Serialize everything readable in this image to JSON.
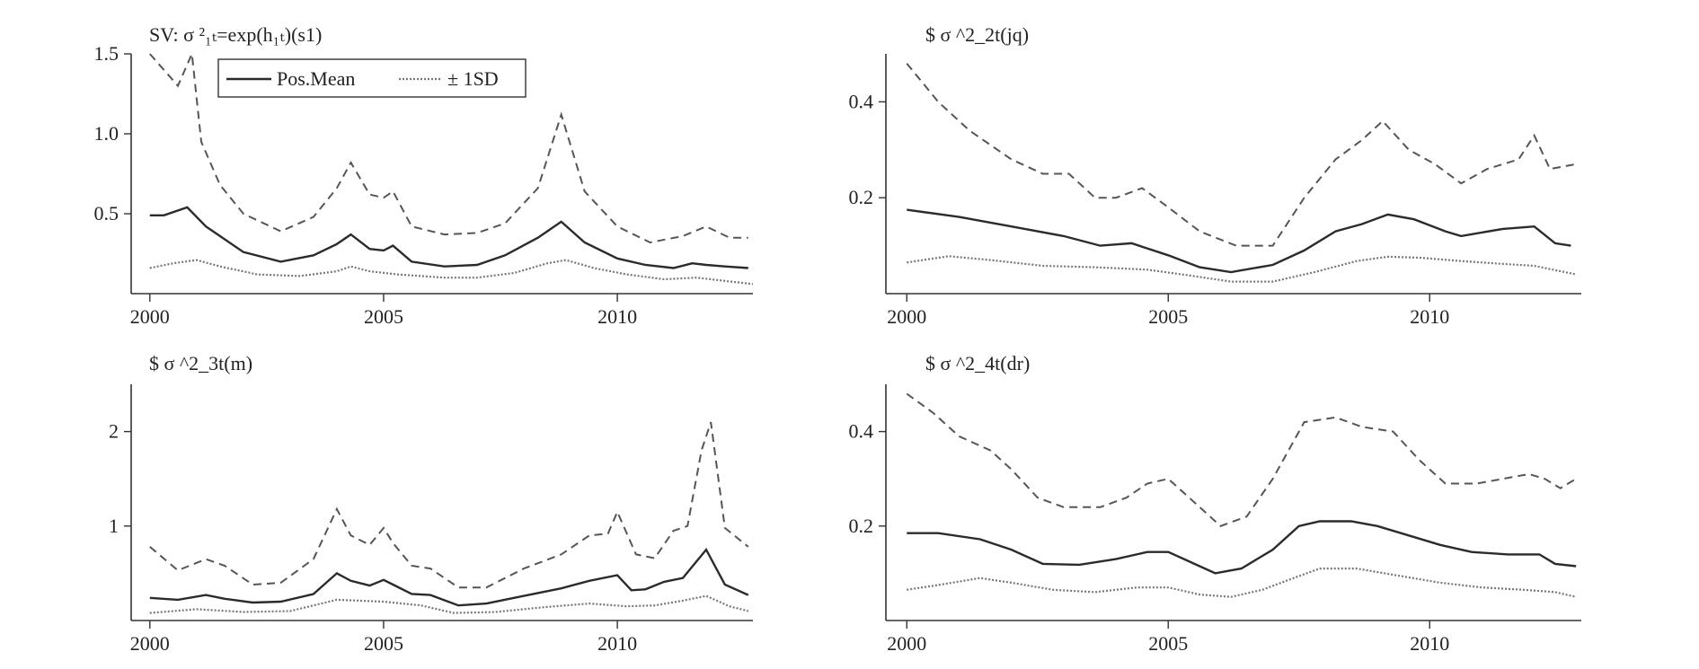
{
  "legend": {
    "mean_label": "Pos.Mean",
    "band_label": "± 1SD"
  },
  "chart_data": [
    {
      "type": "line",
      "title": "SV: σ ²₁ₜ=exp(h₁ₜ)(s1)",
      "ylim": [
        0,
        1.5
      ],
      "yticks": [
        0.5,
        1.0,
        1.5
      ],
      "ytick_labels": [
        "0.5",
        "1.0",
        "1.5"
      ],
      "xlim": [
        1999.6,
        2012.9
      ],
      "xticks": [
        2000,
        2005,
        2010
      ],
      "xtick_labels": [
        "2000",
        "2005",
        "2010"
      ],
      "series": [
        {
          "name": "Pos.Mean",
          "style": "solid",
          "x": [
            2000.0,
            2000.3,
            2000.8,
            2001.2,
            2002.0,
            2002.8,
            2003.5,
            2004.0,
            2004.3,
            2004.7,
            2005.0,
            2005.2,
            2005.6,
            2006.3,
            2007.0,
            2007.6,
            2008.3,
            2008.8,
            2009.3,
            2010.0,
            2010.6,
            2011.2,
            2011.6,
            2011.9,
            2012.3,
            2012.8
          ],
          "y": [
            0.49,
            0.49,
            0.54,
            0.42,
            0.26,
            0.2,
            0.24,
            0.31,
            0.37,
            0.28,
            0.27,
            0.3,
            0.2,
            0.17,
            0.18,
            0.24,
            0.35,
            0.45,
            0.32,
            0.22,
            0.18,
            0.16,
            0.19,
            0.18,
            0.17,
            0.16
          ]
        },
        {
          "name": "+1SD",
          "style": "dashed",
          "x": [
            2000.0,
            2000.3,
            2000.6,
            2000.9,
            2001.1,
            2001.5,
            2002.0,
            2002.8,
            2003.5,
            2004.0,
            2004.3,
            2004.7,
            2005.0,
            2005.2,
            2005.6,
            2006.3,
            2007.0,
            2007.6,
            2008.3,
            2008.8,
            2009.3,
            2010.0,
            2010.7,
            2011.4,
            2011.9,
            2012.4,
            2012.8
          ],
          "y": [
            1.5,
            1.4,
            1.3,
            1.5,
            0.95,
            0.68,
            0.5,
            0.39,
            0.48,
            0.66,
            0.82,
            0.62,
            0.6,
            0.64,
            0.42,
            0.37,
            0.38,
            0.44,
            0.66,
            1.12,
            0.64,
            0.42,
            0.32,
            0.36,
            0.42,
            0.35,
            0.35
          ]
        },
        {
          "name": "-1SD",
          "style": "dotted",
          "x": [
            2000.0,
            2000.5,
            2001.0,
            2001.5,
            2002.3,
            2003.2,
            2004.0,
            2004.3,
            2004.7,
            2005.3,
            2006.3,
            2007.0,
            2007.8,
            2008.5,
            2008.9,
            2009.5,
            2010.2,
            2011.0,
            2011.7,
            2012.3,
            2012.9
          ],
          "y": [
            0.16,
            0.19,
            0.21,
            0.17,
            0.12,
            0.11,
            0.14,
            0.17,
            0.14,
            0.12,
            0.1,
            0.1,
            0.13,
            0.19,
            0.21,
            0.16,
            0.12,
            0.09,
            0.1,
            0.08,
            0.06
          ]
        }
      ]
    },
    {
      "type": "line",
      "title": "$ σ ^2_2t(jq)",
      "ylim": [
        0,
        0.5
      ],
      "yticks": [
        0.2,
        0.4
      ],
      "ytick_labels": [
        "0.2",
        "0.4"
      ],
      "xlim": [
        1999.6,
        2012.9
      ],
      "xticks": [
        2000,
        2005,
        2010
      ],
      "xtick_labels": [
        "2000",
        "2005",
        "2010"
      ],
      "series": [
        {
          "name": "Pos.Mean",
          "style": "solid",
          "x": [
            2000.0,
            2001.0,
            2002.0,
            2003.0,
            2003.7,
            2004.3,
            2005.0,
            2005.6,
            2006.2,
            2007.0,
            2007.6,
            2008.2,
            2008.7,
            2009.2,
            2009.7,
            2010.3,
            2010.6,
            2011.4,
            2012.0,
            2012.4,
            2012.7
          ],
          "y": [
            0.175,
            0.16,
            0.14,
            0.12,
            0.1,
            0.105,
            0.08,
            0.055,
            0.045,
            0.06,
            0.09,
            0.13,
            0.145,
            0.165,
            0.155,
            0.13,
            0.12,
            0.135,
            0.14,
            0.105,
            0.1
          ]
        },
        {
          "name": "+1SD",
          "style": "dashed",
          "x": [
            2000.0,
            2000.6,
            2001.2,
            2002.0,
            2002.6,
            2003.1,
            2003.6,
            2004.0,
            2004.5,
            2005.0,
            2005.6,
            2006.3,
            2007.0,
            2007.6,
            2008.2,
            2008.7,
            2009.1,
            2009.6,
            2010.1,
            2010.6,
            2011.1,
            2011.7,
            2012.0,
            2012.3,
            2012.8
          ],
          "y": [
            0.48,
            0.4,
            0.34,
            0.28,
            0.25,
            0.25,
            0.2,
            0.2,
            0.22,
            0.18,
            0.13,
            0.1,
            0.1,
            0.2,
            0.28,
            0.32,
            0.36,
            0.3,
            0.27,
            0.23,
            0.26,
            0.28,
            0.33,
            0.26,
            0.27
          ]
        },
        {
          "name": "-1SD",
          "style": "dotted",
          "x": [
            2000.0,
            2000.8,
            2001.6,
            2002.6,
            2003.6,
            2004.6,
            2005.4,
            2006.2,
            2007.0,
            2007.8,
            2008.6,
            2009.2,
            2009.8,
            2010.6,
            2011.4,
            2012.0,
            2012.8
          ],
          "y": [
            0.065,
            0.078,
            0.07,
            0.058,
            0.055,
            0.05,
            0.038,
            0.025,
            0.025,
            0.045,
            0.068,
            0.077,
            0.075,
            0.068,
            0.062,
            0.058,
            0.04
          ]
        }
      ]
    },
    {
      "type": "line",
      "title": "$ σ ^2_3t(m)",
      "ylim": [
        0,
        2.5
      ],
      "yticks": [
        1,
        2
      ],
      "ytick_labels": [
        "1",
        "2"
      ],
      "xlim": [
        1999.6,
        2012.9
      ],
      "xticks": [
        2000,
        2005,
        2010
      ],
      "xtick_labels": [
        "2000",
        "2005",
        "2010"
      ],
      "series": [
        {
          "name": "Pos.Mean",
          "style": "solid",
          "x": [
            2000.0,
            2000.6,
            2001.2,
            2001.6,
            2002.2,
            2002.8,
            2003.5,
            2004.0,
            2004.3,
            2004.7,
            2005.0,
            2005.2,
            2005.6,
            2006.0,
            2006.6,
            2007.2,
            2008.0,
            2008.8,
            2009.4,
            2010.0,
            2010.3,
            2010.6,
            2011.0,
            2011.4,
            2011.9,
            2012.3,
            2012.8
          ],
          "y": [
            0.24,
            0.22,
            0.27,
            0.23,
            0.19,
            0.2,
            0.28,
            0.5,
            0.42,
            0.37,
            0.43,
            0.38,
            0.28,
            0.27,
            0.16,
            0.18,
            0.26,
            0.34,
            0.42,
            0.48,
            0.32,
            0.33,
            0.41,
            0.45,
            0.75,
            0.38,
            0.27
          ]
        },
        {
          "name": "+1SD",
          "style": "dashed",
          "x": [
            2000.0,
            2000.6,
            2001.2,
            2001.6,
            2002.2,
            2002.8,
            2003.5,
            2004.0,
            2004.3,
            2004.7,
            2005.0,
            2005.2,
            2005.6,
            2006.0,
            2006.6,
            2007.2,
            2008.0,
            2008.8,
            2009.4,
            2009.8,
            2010.0,
            2010.4,
            2010.8,
            2011.2,
            2011.5,
            2011.8,
            2012.0,
            2012.3,
            2012.8
          ],
          "y": [
            0.78,
            0.53,
            0.65,
            0.58,
            0.38,
            0.4,
            0.65,
            1.18,
            0.9,
            0.8,
            0.98,
            0.82,
            0.58,
            0.55,
            0.35,
            0.35,
            0.55,
            0.7,
            0.9,
            0.92,
            1.15,
            0.7,
            0.66,
            0.95,
            1.0,
            1.8,
            2.1,
            0.98,
            0.78
          ]
        },
        {
          "name": "-1SD",
          "style": "dotted",
          "x": [
            2000.0,
            2001.0,
            2002.0,
            2003.0,
            2004.0,
            2005.0,
            2005.8,
            2006.5,
            2007.4,
            2008.4,
            2009.4,
            2010.2,
            2010.8,
            2011.4,
            2011.9,
            2012.4,
            2012.8
          ],
          "y": [
            0.08,
            0.12,
            0.09,
            0.1,
            0.22,
            0.2,
            0.16,
            0.08,
            0.09,
            0.14,
            0.18,
            0.15,
            0.16,
            0.21,
            0.26,
            0.15,
            0.1
          ]
        }
      ]
    },
    {
      "type": "line",
      "title": "$ σ ^2_4t(dr)",
      "ylim": [
        0,
        0.5
      ],
      "yticks": [
        0.2,
        0.4
      ],
      "ytick_labels": [
        "0.2",
        "0.4"
      ],
      "xlim": [
        1999.6,
        2012.9
      ],
      "xticks": [
        2000,
        2005,
        2010
      ],
      "xtick_labels": [
        "2000",
        "2005",
        "2010"
      ],
      "series": [
        {
          "name": "Pos.Mean",
          "style": "solid",
          "x": [
            2000.0,
            2000.6,
            2001.4,
            2002.0,
            2002.6,
            2003.3,
            2004.0,
            2004.6,
            2005.0,
            2005.5,
            2005.9,
            2006.4,
            2007.0,
            2007.5,
            2007.9,
            2008.5,
            2009.0,
            2009.6,
            2010.2,
            2010.8,
            2011.5,
            2012.1,
            2012.4,
            2012.8
          ],
          "y": [
            0.185,
            0.185,
            0.172,
            0.15,
            0.12,
            0.118,
            0.13,
            0.145,
            0.145,
            0.12,
            0.1,
            0.11,
            0.15,
            0.2,
            0.21,
            0.21,
            0.2,
            0.18,
            0.16,
            0.145,
            0.14,
            0.14,
            0.12,
            0.115
          ]
        },
        {
          "name": "+1SD",
          "style": "dashed",
          "x": [
            2000.0,
            2000.5,
            2001.0,
            2001.6,
            2002.0,
            2002.5,
            2003.0,
            2003.7,
            2004.2,
            2004.6,
            2005.0,
            2005.5,
            2006.0,
            2006.5,
            2007.0,
            2007.6,
            2008.2,
            2008.7,
            2009.3,
            2009.8,
            2010.3,
            2010.9,
            2011.4,
            2011.9,
            2012.2,
            2012.5,
            2012.8
          ],
          "y": [
            0.48,
            0.44,
            0.39,
            0.36,
            0.32,
            0.26,
            0.24,
            0.24,
            0.26,
            0.29,
            0.3,
            0.25,
            0.2,
            0.22,
            0.3,
            0.42,
            0.43,
            0.41,
            0.4,
            0.34,
            0.29,
            0.29,
            0.3,
            0.31,
            0.3,
            0.28,
            0.3
          ]
        },
        {
          "name": "-1SD",
          "style": "dotted",
          "x": [
            2000.0,
            2000.6,
            2001.4,
            2002.0,
            2002.8,
            2003.6,
            2004.4,
            2005.0,
            2005.6,
            2006.2,
            2006.8,
            2007.4,
            2007.9,
            2008.6,
            2009.4,
            2010.2,
            2011.0,
            2011.8,
            2012.4,
            2012.8
          ],
          "y": [
            0.065,
            0.075,
            0.09,
            0.08,
            0.065,
            0.06,
            0.07,
            0.07,
            0.055,
            0.05,
            0.065,
            0.09,
            0.11,
            0.11,
            0.095,
            0.08,
            0.07,
            0.065,
            0.06,
            0.05
          ]
        }
      ]
    }
  ]
}
